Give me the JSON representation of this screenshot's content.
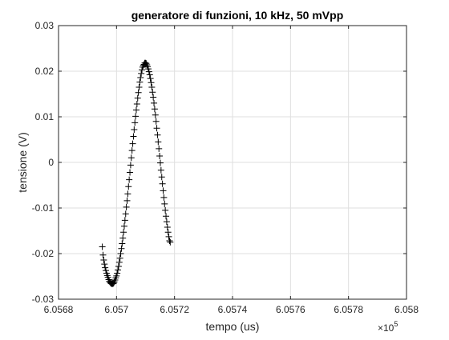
{
  "chart_data": {
    "type": "scatter",
    "title": "generatore di funzioni, 10 kHz, 50 mVpp",
    "xlabel": "tempo (us)",
    "ylabel": "tensione (V)",
    "x_exponent_label": "×10",
    "x_exponent_power": "5",
    "x_exponent": 5,
    "xlim": [
      6.0568,
      6.058
    ],
    "ylim": [
      -0.03,
      0.03
    ],
    "xticks": [
      6.0568,
      6.057,
      6.0572,
      6.0574,
      6.0576,
      6.0578,
      6.058
    ],
    "xtick_labels": [
      "6.0568",
      "6.057",
      "6.0572",
      "6.0574",
      "6.0576",
      "6.0578",
      "6.058"
    ],
    "yticks": [
      -0.03,
      -0.02,
      -0.01,
      0,
      0.01,
      0.02,
      0.03
    ],
    "ytick_labels": [
      "-0.03",
      "-0.02",
      "-0.01",
      "0",
      "0.01",
      "0.02",
      "0.03"
    ],
    "grid": true,
    "marker": "+",
    "marker_color": "#000000",
    "series": [
      {
        "sample_x_start": 6.056951,
        "sample_x_step": 2.44e-06,
        "y": [
          -0.0185,
          -0.0203,
          -0.0214,
          -0.0223,
          -0.0231,
          -0.0237,
          -0.0243,
          -0.0248,
          -0.0252,
          -0.0257,
          -0.0261,
          -0.0263,
          -0.0265,
          -0.0266,
          -0.0266,
          -0.0266,
          -0.0265,
          -0.0262,
          -0.0258,
          -0.0253,
          -0.0249,
          -0.0243,
          -0.0236,
          -0.0228,
          -0.0219,
          -0.021,
          -0.02,
          -0.0189,
          -0.0178,
          -0.0166,
          -0.0153,
          -0.014,
          -0.0127,
          -0.0113,
          -0.0098,
          -0.0084,
          -0.0069,
          -0.0053,
          -0.0038,
          -0.0022,
          -0.0006,
          0.001,
          0.0026,
          0.0041,
          0.0057,
          0.0072,
          0.0087,
          0.0101,
          0.0115,
          0.0128,
          0.0141,
          0.0153,
          0.0165,
          0.0176,
          0.0186,
          0.0195,
          0.0203,
          0.0209,
          0.0213,
          0.0215,
          0.0218,
          0.0218,
          0.0217,
          0.0214,
          0.021,
          0.0205,
          0.0199,
          0.0192,
          0.0184,
          0.0175,
          0.0165,
          0.0154,
          0.0143,
          0.013,
          0.0117,
          0.0104,
          0.009,
          0.0075,
          0.006,
          0.0045,
          0.003,
          0.0014,
          -0.0001,
          -0.0017,
          -0.0032,
          -0.0047,
          -0.0062,
          -0.0077,
          -0.0091,
          -0.0105,
          -0.0118,
          -0.013,
          -0.0142,
          -0.0153,
          -0.0163,
          -0.0172,
          -0.0175
        ]
      }
    ]
  }
}
